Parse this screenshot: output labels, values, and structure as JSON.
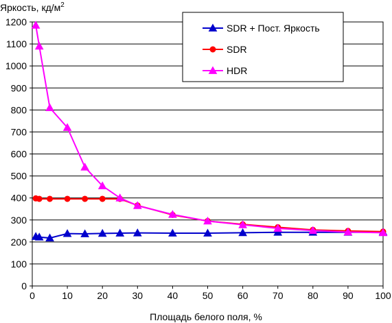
{
  "chart_data": {
    "type": "line",
    "ylabel": "Яркость, кд/м",
    "ylabel_sup": "2",
    "xlabel": "Площадь белого поля, %",
    "xlim": [
      0,
      100
    ],
    "ylim": [
      0,
      1200
    ],
    "xticks": [
      0,
      10,
      20,
      30,
      40,
      50,
      60,
      70,
      80,
      90,
      100
    ],
    "yticks": [
      0,
      100,
      200,
      300,
      400,
      500,
      600,
      700,
      800,
      900,
      1000,
      1100,
      1200
    ],
    "grid": "horizontal",
    "legend_position": "top-right",
    "series": [
      {
        "name": "SDR + Пост. Яркость",
        "color": "#0000cc",
        "marker": "triangle",
        "x": [
          1,
          2,
          5,
          10,
          15,
          20,
          25,
          30,
          40,
          50,
          60,
          70,
          80,
          90,
          100
        ],
        "y": [
          225,
          222,
          218,
          238,
          237,
          239,
          240,
          241,
          240,
          240,
          242,
          244,
          244,
          244,
          245
        ]
      },
      {
        "name": "SDR",
        "color": "#ff0000",
        "marker": "circle",
        "x": [
          1,
          2,
          5,
          10,
          15,
          20,
          25,
          30,
          40,
          50,
          60,
          70,
          80,
          90,
          100
        ],
        "y": [
          398,
          396,
          396,
          396,
          396,
          396,
          396,
          366,
          323,
          295,
          280,
          267,
          255,
          250,
          247
        ]
      },
      {
        "name": "HDR",
        "color": "#ff00ff",
        "marker": "triangle",
        "x": [
          1,
          2,
          5,
          10,
          15,
          20,
          25,
          30,
          40,
          50,
          60,
          70,
          80,
          90,
          100
        ],
        "y": [
          1185,
          1090,
          810,
          720,
          540,
          455,
          400,
          365,
          325,
          295,
          278,
          262,
          252,
          245,
          242
        ]
      }
    ]
  }
}
